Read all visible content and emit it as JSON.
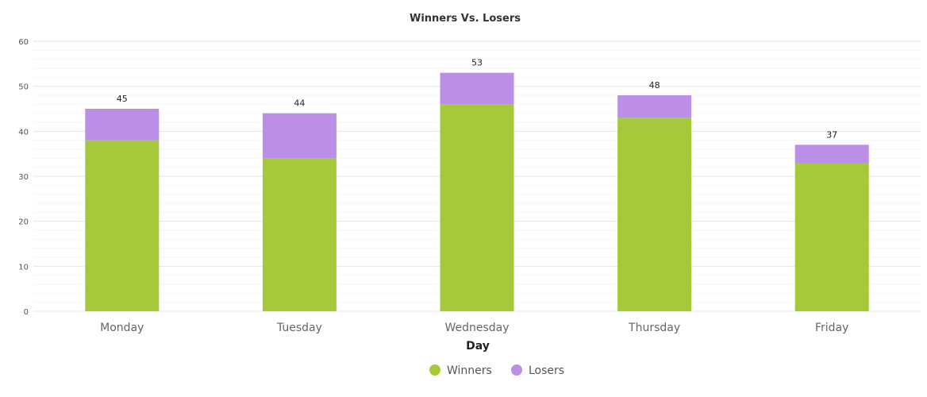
{
  "chart_data": {
    "type": "bar",
    "stacked": true,
    "title": "Winners Vs. Losers",
    "xlabel": "Day",
    "ylabel": "",
    "ylim": [
      0,
      60
    ],
    "yticks": [
      0,
      10,
      20,
      30,
      40,
      50,
      60
    ],
    "grid": true,
    "legend_position": "bottom-center",
    "categories": [
      "Monday",
      "Tuesday",
      "Wednesday",
      "Thursday",
      "Friday"
    ],
    "series": [
      {
        "name": "Winners",
        "color": "#a5c93a",
        "values": [
          38,
          34,
          46,
          43,
          33
        ]
      },
      {
        "name": "Losers",
        "color": "#bb8fe5",
        "values": [
          7,
          10,
          7,
          5,
          4
        ]
      }
    ],
    "totals": [
      "45",
      "44",
      "53",
      "48",
      "37"
    ]
  }
}
